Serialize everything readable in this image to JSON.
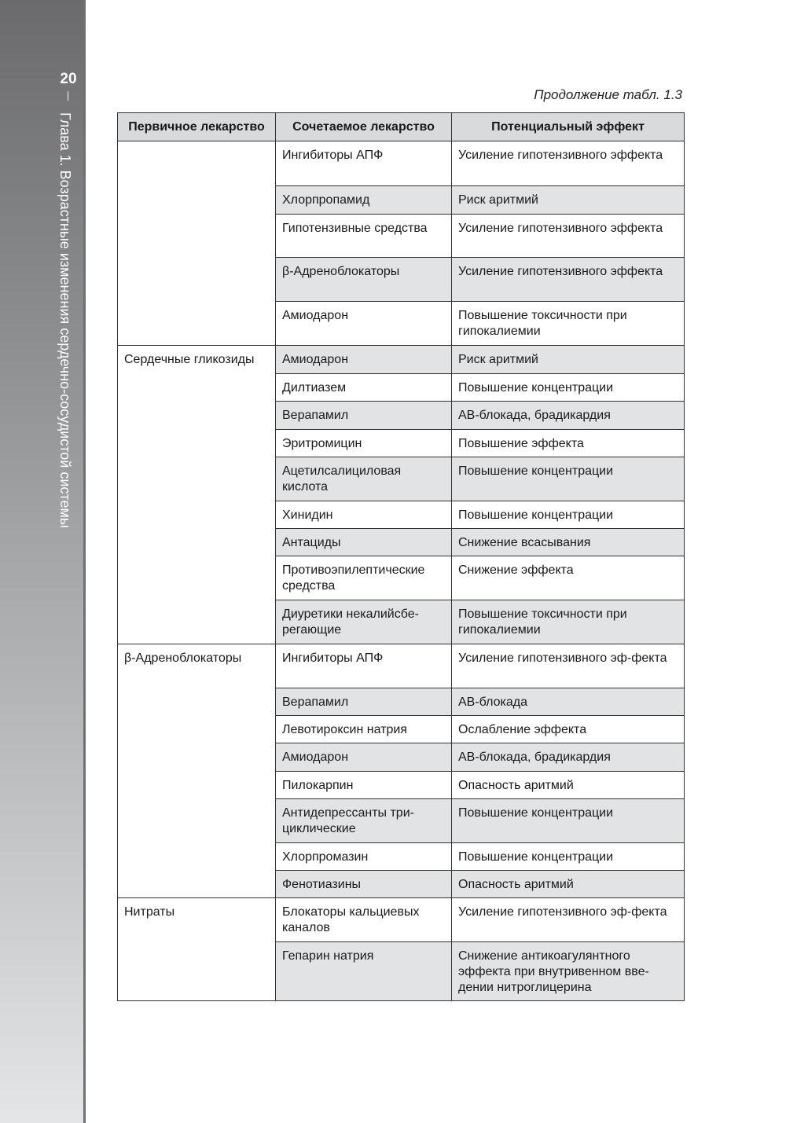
{
  "sidebar": {
    "page_number": "20",
    "chapter_title": "Глава 1. Возрастные изменения сердечно-сосудистой системы"
  },
  "caption": "Продолжение табл. 1.3",
  "table": {
    "headers": [
      "Первичное лекарство",
      "Сочетаемое лекарство",
      "Потенциальный эффект"
    ],
    "groups": [
      {
        "primary": "",
        "rows": [
          {
            "drug": "Ингибиторы АПФ",
            "effect": "Усиление гипотензивного эффекта",
            "h": 57
          },
          {
            "drug": "Хлорпропамид",
            "effect": "Риск аритмий",
            "h": 36
          },
          {
            "drug": "Гипотензивные средства",
            "effect": "Усиление гипотензивного эффекта",
            "h": 55
          },
          {
            "drug": "β-Адреноблокаторы",
            "effect": "Усиление гипотензивного эффекта",
            "h": 56
          },
          {
            "drug": "Амиодарон",
            "effect": "Повышение токсичности при гипокалиемии",
            "h": 56
          }
        ]
      },
      {
        "primary": "Сердечные гликозиды",
        "rows": [
          {
            "drug": "Амиодарон",
            "effect": "Риск аритмий",
            "h": 36
          },
          {
            "drug": "Дилтиазем",
            "effect": "Повышение концентрации",
            "h": 35
          },
          {
            "drug": "Верапамил",
            "effect": "АВ-блокада, брадикардия",
            "h": 36
          },
          {
            "drug": "Эритромицин",
            "effect": "Повышение эффекта",
            "h": 35
          },
          {
            "drug": "Ацетилсалициловая кислота",
            "effect": "Повышение концентрации",
            "h": 56
          },
          {
            "drug": "Хинидин",
            "effect": "Повышение концентрации",
            "h": 35
          },
          {
            "drug": "Антациды",
            "effect": "Снижение всасывания",
            "h": 35
          },
          {
            "drug": "Противоэпилептические средства",
            "effect": "Снижение эффекта",
            "h": 56
          },
          {
            "drug": "Диуретики некалийсбе-регающие",
            "effect": "Повышение токсичности при гипокалиемии",
            "h": 56
          }
        ]
      },
      {
        "primary": "β-Адреноблокаторы",
        "rows": [
          {
            "drug": "Ингибиторы АПФ",
            "effect": "Усиление гипотензивного эф-фекта",
            "h": 56
          },
          {
            "drug": "Верапамил",
            "effect": "АВ-блокада",
            "h": 35
          },
          {
            "drug": "Левотироксин натрия",
            "effect": "Ослабление эффекта",
            "h": 35
          },
          {
            "drug": "Амиодарон",
            "effect": "АВ-блокада, брадикардия",
            "h": 36
          },
          {
            "drug": "Пилокарпин",
            "effect": "Опасность аритмий",
            "h": 35
          },
          {
            "drug": "Антидепрессанты три-циклические",
            "effect": "Повышение концентрации",
            "h": 56
          },
          {
            "drug": "Хлорпромазин",
            "effect": "Повышение концентрации",
            "h": 35
          },
          {
            "drug": "Фенотиазины",
            "effect": "Опасность аритмий",
            "h": 35
          }
        ]
      },
      {
        "primary": "Нитраты",
        "rows": [
          {
            "drug": "Блокаторы кальциевых каналов",
            "effect": "Усиление гипотензивного эф-фекта",
            "h": 56
          },
          {
            "drug": "Гепарин натрия",
            "effect": "Снижение антикоагулянтного эффекта при внутривенном вве-дении нитроглицерина",
            "h": 75
          }
        ]
      }
    ]
  }
}
